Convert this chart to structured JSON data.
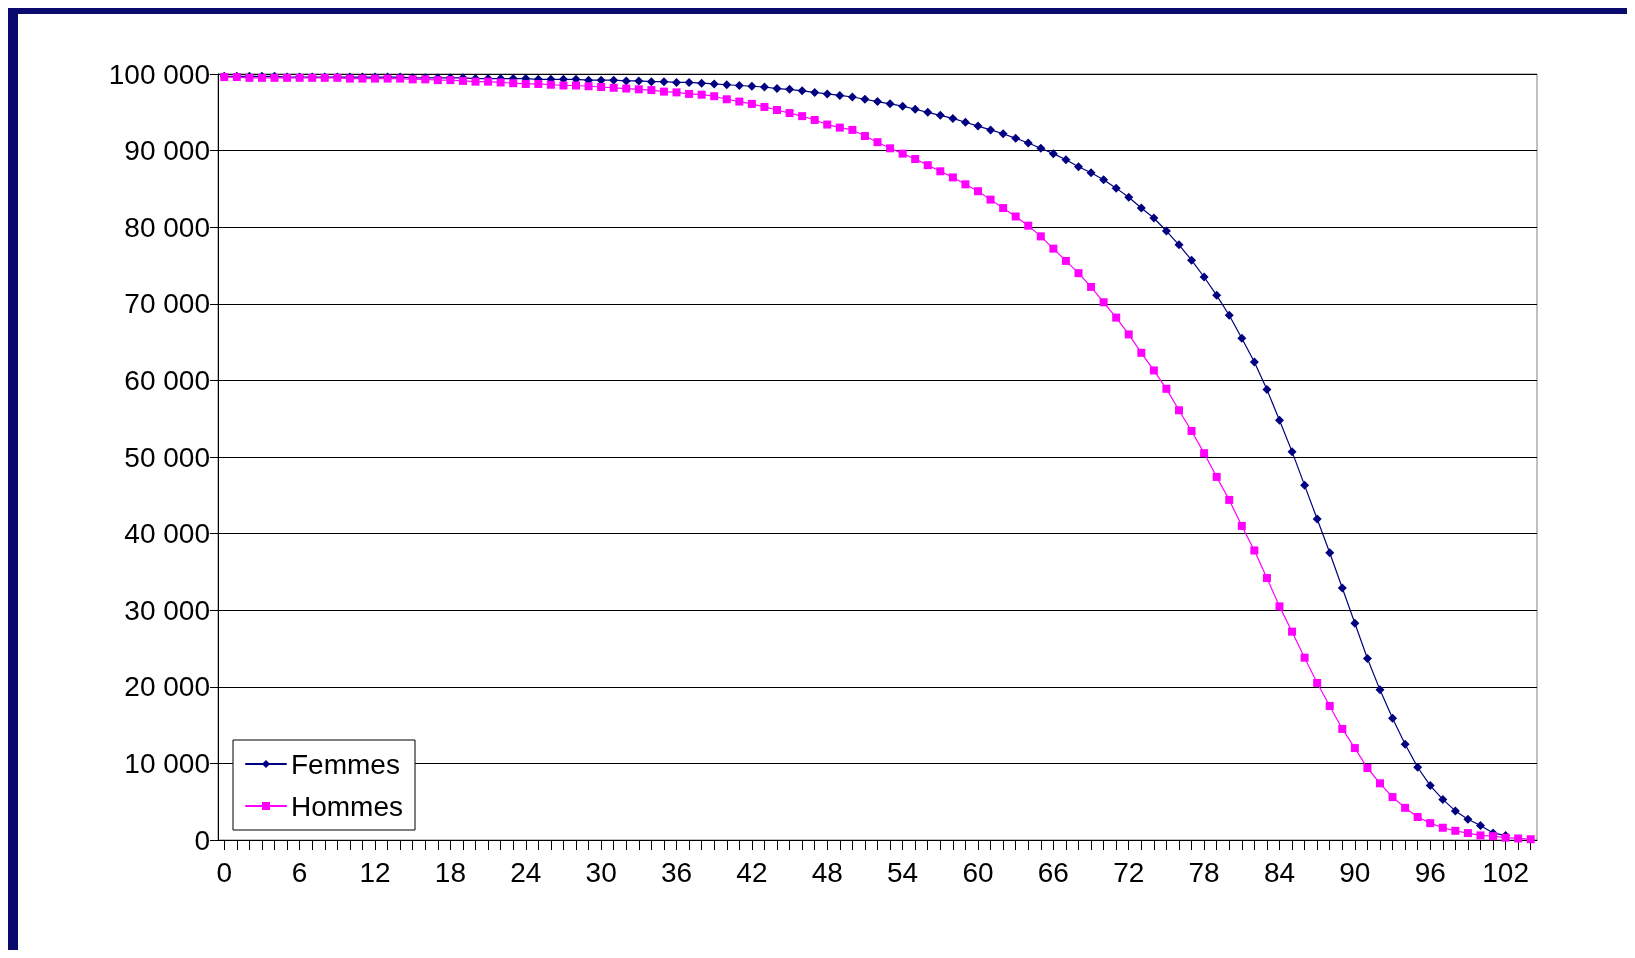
{
  "chart_data": {
    "type": "line",
    "categories": [
      "0",
      null,
      null,
      null,
      null,
      null,
      "6",
      null,
      null,
      null,
      null,
      null,
      "12",
      null,
      null,
      null,
      null,
      null,
      "18",
      null,
      null,
      null,
      null,
      null,
      "24",
      null,
      null,
      null,
      null,
      null,
      "30",
      null,
      null,
      null,
      null,
      null,
      "36",
      null,
      null,
      null,
      null,
      null,
      "42",
      null,
      null,
      null,
      null,
      null,
      "48",
      null,
      null,
      null,
      null,
      null,
      "54",
      null,
      null,
      null,
      null,
      null,
      "60",
      null,
      null,
      null,
      null,
      null,
      "66",
      null,
      null,
      null,
      null,
      null,
      "72",
      null,
      null,
      null,
      null,
      null,
      "78",
      null,
      null,
      null,
      null,
      null,
      "84",
      null,
      null,
      null,
      null,
      null,
      "90",
      null,
      null,
      null,
      null,
      null,
      "96",
      null,
      null,
      null,
      null,
      null,
      "102",
      null,
      null
    ],
    "series": [
      {
        "name": "Femmes",
        "color": "#000080",
        "marker": "diamond",
        "values": [
          99700,
          99700,
          99700,
          99700,
          99700,
          99600,
          99600,
          99600,
          99600,
          99600,
          99600,
          99600,
          99600,
          99600,
          99600,
          99500,
          99500,
          99500,
          99500,
          99500,
          99400,
          99400,
          99400,
          99400,
          99400,
          99300,
          99300,
          99300,
          99300,
          99200,
          99200,
          99200,
          99100,
          99100,
          99000,
          99000,
          98900,
          98900,
          98800,
          98700,
          98600,
          98500,
          98400,
          98300,
          98100,
          98000,
          97800,
          97600,
          97400,
          97200,
          97000,
          96700,
          96400,
          96100,
          95800,
          95400,
          95000,
          94600,
          94200,
          93700,
          93200,
          92700,
          92200,
          91600,
          91000,
          90300,
          89600,
          88800,
          87900,
          87100,
          86200,
          85100,
          83900,
          82500,
          81200,
          79500,
          77700,
          75700,
          73500,
          71100,
          68500,
          65500,
          62400,
          58800,
          54800,
          50700,
          46300,
          41900,
          37500,
          32900,
          28300,
          23700,
          19600,
          15900,
          12500,
          9500,
          7100,
          5300,
          3800,
          2700,
          1900,
          900,
          600,
          null,
          null
        ]
      },
      {
        "name": "Hommes",
        "color": "#ff00ff",
        "marker": "square",
        "values": [
          99600,
          99600,
          99500,
          99500,
          99500,
          99500,
          99500,
          99500,
          99500,
          99500,
          99400,
          99400,
          99400,
          99400,
          99400,
          99300,
          99300,
          99200,
          99200,
          99100,
          99000,
          99000,
          98900,
          98800,
          98700,
          98700,
          98600,
          98500,
          98500,
          98400,
          98300,
          98200,
          98100,
          98000,
          97900,
          97700,
          97600,
          97400,
          97300,
          97100,
          96700,
          96400,
          96100,
          95700,
          95300,
          94900,
          94500,
          94000,
          93400,
          93000,
          92700,
          91900,
          91100,
          90300,
          89600,
          88900,
          88100,
          87300,
          86500,
          85600,
          84700,
          83600,
          82500,
          81400,
          80200,
          78800,
          77200,
          75600,
          74000,
          72200,
          70200,
          68200,
          66000,
          63600,
          61300,
          58900,
          56100,
          53400,
          50500,
          47400,
          44400,
          41000,
          37800,
          34200,
          30500,
          27200,
          23800,
          20500,
          17500,
          14500,
          12000,
          9400,
          7400,
          5600,
          4200,
          3000,
          2200,
          1600,
          1200,
          900,
          600,
          500,
          300,
          200,
          100
        ]
      }
    ],
    "ylim": [
      0,
      100000
    ],
    "yticks": [
      {
        "value": 0,
        "label": "0"
      },
      {
        "value": 10000,
        "label": "10 000"
      },
      {
        "value": 20000,
        "label": "20 000"
      },
      {
        "value": 30000,
        "label": "30 000"
      },
      {
        "value": 40000,
        "label": "40 000"
      },
      {
        "value": 50000,
        "label": "50 000"
      },
      {
        "value": 60000,
        "label": "60 000"
      },
      {
        "value": 70000,
        "label": "70 000"
      },
      {
        "value": 80000,
        "label": "80 000"
      },
      {
        "value": 90000,
        "label": "90 000"
      },
      {
        "value": 100000,
        "label": "100 000"
      }
    ],
    "grid": "y",
    "legend": "bottom left",
    "line_style": "solid"
  }
}
